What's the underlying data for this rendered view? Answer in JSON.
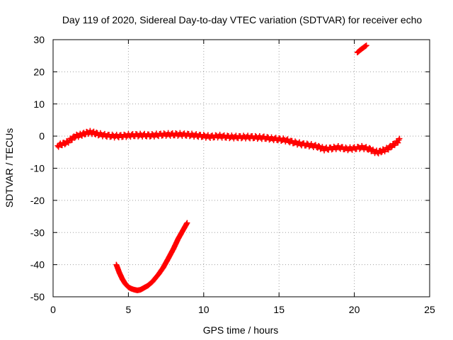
{
  "chart_data": {
    "type": "scatter",
    "title": "Day 119 of 2020, Sidereal Day-to-day VTEC variation (SDTVAR) for receiver echo",
    "xlabel": "GPS time / hours",
    "ylabel": "SDTVAR / TECUs",
    "xlim": [
      0,
      25
    ],
    "ylim": [
      -50,
      30
    ],
    "xticks": [
      0,
      5,
      10,
      15,
      20,
      25
    ],
    "yticks": [
      -50,
      -40,
      -30,
      -20,
      -10,
      0,
      10,
      20,
      30
    ],
    "grid": true,
    "marker": "+",
    "color": "#ff0000",
    "series": [
      {
        "name": "main-track",
        "x": [
          0.3,
          0.6,
          0.9,
          1.2,
          1.5,
          1.8,
          2.1,
          2.4,
          2.7,
          3.0,
          3.5,
          4.0,
          4.5,
          5.0,
          5.5,
          6.0,
          6.5,
          7.0,
          7.5,
          8.0,
          8.5,
          9.0,
          9.5,
          10.0,
          10.5,
          11.0,
          11.5,
          12.0,
          12.5,
          13.0,
          13.5,
          14.0,
          14.5,
          15.0,
          15.5,
          16.0,
          16.5,
          17.0,
          17.5,
          18.0,
          18.5,
          19.0,
          19.5,
          20.0,
          20.5,
          21.0,
          21.3,
          21.6,
          21.9,
          22.2,
          22.5,
          22.8,
          23.0
        ],
        "y": [
          -3.0,
          -2.5,
          -2.0,
          -1.0,
          0.0,
          0.3,
          0.8,
          1.2,
          1.0,
          0.6,
          0.2,
          0.0,
          0.0,
          0.2,
          0.3,
          0.3,
          0.2,
          0.4,
          0.5,
          0.5,
          0.5,
          0.4,
          0.2,
          0.0,
          -0.2,
          0.0,
          -0.2,
          -0.3,
          -0.3,
          -0.3,
          -0.4,
          -0.5,
          -0.8,
          -1.0,
          -1.3,
          -2.0,
          -2.5,
          -2.8,
          -3.2,
          -4.0,
          -3.8,
          -3.5,
          -4.0,
          -3.8,
          -3.5,
          -4.0,
          -4.8,
          -5.0,
          -4.5,
          -4.0,
          -3.0,
          -2.0,
          -1.2
        ]
      },
      {
        "name": "dip-arc",
        "x": [
          4.2,
          4.4,
          4.6,
          4.8,
          5.0,
          5.2,
          5.4,
          5.6,
          5.8,
          6.0,
          6.3,
          6.6,
          7.0,
          7.3,
          7.6,
          8.0,
          8.3,
          8.6,
          8.9
        ],
        "y": [
          -40.0,
          -42.5,
          -44.5,
          -46.0,
          -47.0,
          -47.5,
          -47.8,
          -48.0,
          -47.8,
          -47.3,
          -46.5,
          -45.3,
          -43.0,
          -41.0,
          -38.5,
          -35.0,
          -32.0,
          -29.5,
          -27.0
        ]
      },
      {
        "name": "upper-fragment",
        "x": [
          20.2,
          20.4,
          20.6,
          20.8
        ],
        "y": [
          26.0,
          26.8,
          27.5,
          28.2
        ]
      }
    ]
  }
}
